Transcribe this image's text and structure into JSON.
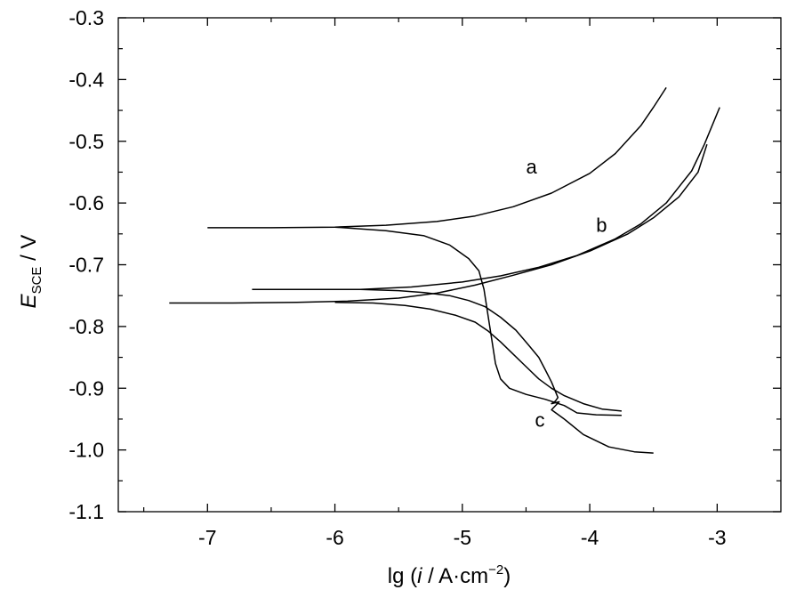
{
  "chart_data": {
    "type": "line",
    "title": "",
    "xlabel": {
      "prefix": "lg (",
      "italic": "i",
      "middle": " / A·cm",
      "sup": "−2",
      "suffix": ")"
    },
    "ylabel": {
      "italic": "E",
      "sub": "SCE",
      "suffix": " / V"
    },
    "xlim": [
      -7.7,
      -2.5
    ],
    "ylim": [
      -1.1,
      -0.3
    ],
    "x_ticks": [
      -7,
      -6,
      -5,
      -4,
      -3
    ],
    "x_tick_labels": [
      "-7",
      "-6",
      "-5",
      "-4",
      "-3"
    ],
    "y_ticks": [
      -1.1,
      -1.0,
      -0.9,
      -0.8,
      -0.7,
      -0.6,
      -0.5,
      -0.4,
      -0.3
    ],
    "y_tick_labels": [
      "-1.1",
      "-1.0",
      "-0.9",
      "-0.8",
      "-0.7",
      "-0.6",
      "-0.5",
      "-0.4",
      "-0.3"
    ],
    "grid": false,
    "legend": "none",
    "series": [
      {
        "name": "a",
        "label_at": {
          "x": -4.5,
          "y": -0.552
        },
        "anodic": [
          [
            -7.0,
            -0.64
          ],
          [
            -6.5,
            -0.64
          ],
          [
            -6.0,
            -0.639
          ],
          [
            -5.6,
            -0.636
          ],
          [
            -5.2,
            -0.63
          ],
          [
            -4.9,
            -0.621
          ],
          [
            -4.6,
            -0.606
          ],
          [
            -4.3,
            -0.584
          ],
          [
            -4.0,
            -0.552
          ],
          [
            -3.8,
            -0.52
          ],
          [
            -3.6,
            -0.475
          ],
          [
            -3.5,
            -0.445
          ],
          [
            -3.4,
            -0.413
          ]
        ],
        "cathodic": [
          [
            -6.0,
            -0.639
          ],
          [
            -5.6,
            -0.645
          ],
          [
            -5.3,
            -0.653
          ],
          [
            -5.1,
            -0.668
          ],
          [
            -4.95,
            -0.69
          ],
          [
            -4.87,
            -0.71
          ],
          [
            -4.83,
            -0.74
          ],
          [
            -4.8,
            -0.78
          ],
          [
            -4.77,
            -0.82
          ],
          [
            -4.74,
            -0.86
          ],
          [
            -4.7,
            -0.885
          ],
          [
            -4.63,
            -0.9
          ],
          [
            -4.5,
            -0.91
          ],
          [
            -4.35,
            -0.918
          ],
          [
            -4.2,
            -0.928
          ],
          [
            -4.1,
            -0.94
          ],
          [
            -3.95,
            -0.943
          ],
          [
            -3.75,
            -0.944
          ]
        ]
      },
      {
        "name": "b",
        "label_at": {
          "x": -3.95,
          "y": -0.647
        },
        "anodic": [
          [
            -6.65,
            -0.74
          ],
          [
            -6.2,
            -0.74
          ],
          [
            -5.8,
            -0.74
          ],
          [
            -5.4,
            -0.736
          ],
          [
            -5.0,
            -0.728
          ],
          [
            -4.7,
            -0.718
          ],
          [
            -4.4,
            -0.704
          ],
          [
            -4.1,
            -0.685
          ],
          [
            -3.8,
            -0.658
          ],
          [
            -3.6,
            -0.634
          ],
          [
            -3.4,
            -0.6
          ],
          [
            -3.2,
            -0.548
          ],
          [
            -3.1,
            -0.505
          ],
          [
            -2.98,
            -0.445
          ]
        ],
        "cathodic": [
          [
            -5.8,
            -0.74
          ],
          [
            -5.5,
            -0.742
          ],
          [
            -5.3,
            -0.745
          ],
          [
            -5.1,
            -0.75
          ],
          [
            -4.95,
            -0.758
          ],
          [
            -4.82,
            -0.768
          ],
          [
            -4.7,
            -0.785
          ],
          [
            -4.58,
            -0.806
          ],
          [
            -4.48,
            -0.83
          ],
          [
            -4.4,
            -0.85
          ],
          [
            -4.35,
            -0.87
          ],
          [
            -4.3,
            -0.89
          ],
          [
            -4.27,
            -0.905
          ],
          [
            -4.25,
            -0.915
          ],
          [
            -4.27,
            -0.921
          ],
          [
            -4.3,
            -0.925
          ],
          [
            -4.24,
            -0.922
          ],
          [
            -4.3,
            -0.935
          ],
          [
            -4.2,
            -0.95
          ],
          [
            -4.05,
            -0.975
          ],
          [
            -3.85,
            -0.995
          ],
          [
            -3.65,
            -1.003
          ],
          [
            -3.5,
            -1.005
          ]
        ]
      },
      {
        "name": "c",
        "label_at": {
          "x": -4.43,
          "y": -0.962
        },
        "anodic": [
          [
            -7.3,
            -0.762
          ],
          [
            -6.8,
            -0.762
          ],
          [
            -6.3,
            -0.761
          ],
          [
            -5.9,
            -0.759
          ],
          [
            -5.5,
            -0.754
          ],
          [
            -5.2,
            -0.746
          ],
          [
            -4.9,
            -0.733
          ],
          [
            -4.6,
            -0.717
          ],
          [
            -4.3,
            -0.7
          ],
          [
            -4.0,
            -0.678
          ],
          [
            -3.7,
            -0.65
          ],
          [
            -3.5,
            -0.624
          ],
          [
            -3.3,
            -0.59
          ],
          [
            -3.15,
            -0.55
          ],
          [
            -3.08,
            -0.505
          ]
        ],
        "cathodic": [
          [
            -6.0,
            -0.761
          ],
          [
            -5.7,
            -0.762
          ],
          [
            -5.45,
            -0.766
          ],
          [
            -5.25,
            -0.772
          ],
          [
            -5.05,
            -0.782
          ],
          [
            -4.9,
            -0.793
          ],
          [
            -4.8,
            -0.807
          ],
          [
            -4.7,
            -0.825
          ],
          [
            -4.6,
            -0.845
          ],
          [
            -4.5,
            -0.865
          ],
          [
            -4.4,
            -0.885
          ],
          [
            -4.3,
            -0.9
          ],
          [
            -4.2,
            -0.912
          ],
          [
            -4.05,
            -0.925
          ],
          [
            -3.9,
            -0.934
          ],
          [
            -3.75,
            -0.937
          ]
        ]
      }
    ]
  }
}
